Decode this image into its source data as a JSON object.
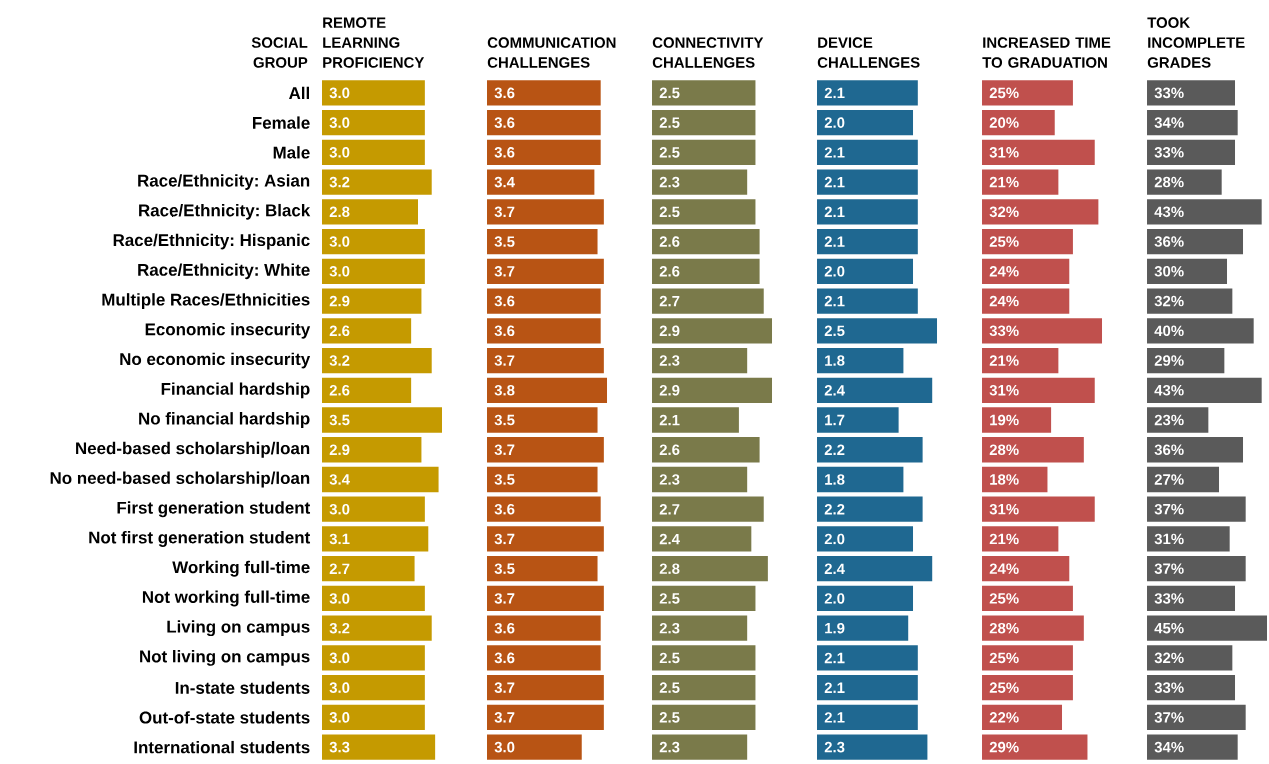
{
  "chart_data": [
    {
      "type": "bar",
      "orientation": "horizontal",
      "title": "REMOTE LEARNING PROFICIENCY",
      "ylabel": "SOCIAL GROUP",
      "tick_labels": "y",
      "color": "#c59a00",
      "xlim": [
        0,
        3.5
      ],
      "categories": [
        "All",
        "Female",
        "Male",
        "Race/Ethnicity: Asian",
        "Race/Ethnicity: Black",
        "Race/Ethnicity: Hispanic",
        "Race/Ethnicity: White",
        "Multiple Races/Ethnicities",
        "Economic insecurity",
        "No economic insecurity",
        "Financial hardship",
        "No financial hardship",
        "Need-based scholarship/loan",
        "No need-based scholarship/loan",
        "First generation student",
        "Not first generation student",
        "Working full-time",
        "Not working full-time",
        "Living on campus",
        "Not living on campus",
        "In-state students",
        "Out-of-state students",
        "International students"
      ],
      "values": [
        3.0,
        3.0,
        3.0,
        3.2,
        2.8,
        3.0,
        3.0,
        2.9,
        2.6,
        3.2,
        2.6,
        3.5,
        2.9,
        3.4,
        3.0,
        3.1,
        2.7,
        3.0,
        3.2,
        3.0,
        3.0,
        3.0,
        3.3
      ],
      "value_labels": [
        "3.0",
        "3.0",
        "3.0",
        "3.2",
        "2.8",
        "3.0",
        "3.0",
        "2.9",
        "2.6",
        "3.2",
        "2.6",
        "3.5",
        "2.9",
        "3.4",
        "3.0",
        "3.1",
        "2.7",
        "3.0",
        "3.2",
        "3.0",
        "3.0",
        "3.0",
        "3.3"
      ]
    },
    {
      "type": "bar",
      "orientation": "horizontal",
      "title": "COMMUNICATION CHALLENGES",
      "tick_labels": false,
      "color": "#b85414",
      "xlim": [
        0,
        3.8
      ],
      "values": [
        3.6,
        3.6,
        3.6,
        3.4,
        3.7,
        3.5,
        3.7,
        3.6,
        3.6,
        3.7,
        3.8,
        3.5,
        3.7,
        3.5,
        3.6,
        3.7,
        3.5,
        3.7,
        3.6,
        3.6,
        3.7,
        3.7,
        3.0
      ],
      "value_labels": [
        "3.6",
        "3.6",
        "3.6",
        "3.4",
        "3.7",
        "3.5",
        "3.7",
        "3.6",
        "3.6",
        "3.7",
        "3.8",
        "3.5",
        "3.7",
        "3.5",
        "3.6",
        "3.7",
        "3.5",
        "3.7",
        "3.6",
        "3.6",
        "3.7",
        "3.7",
        "3.0"
      ]
    },
    {
      "type": "bar",
      "orientation": "horizontal",
      "title": "CONNECTIVITY CHALLENGES",
      "tick_labels": false,
      "color": "#7a7a4a",
      "xlim": [
        0,
        2.9
      ],
      "values": [
        2.5,
        2.5,
        2.5,
        2.3,
        2.5,
        2.6,
        2.6,
        2.7,
        2.9,
        2.3,
        2.9,
        2.1,
        2.6,
        2.3,
        2.7,
        2.4,
        2.8,
        2.5,
        2.3,
        2.5,
        2.5,
        2.5,
        2.3
      ],
      "value_labels": [
        "2.5",
        "2.5",
        "2.5",
        "2.3",
        "2.5",
        "2.6",
        "2.6",
        "2.7",
        "2.9",
        "2.3",
        "2.9",
        "2.1",
        "2.6",
        "2.3",
        "2.7",
        "2.4",
        "2.8",
        "2.5",
        "2.3",
        "2.5",
        "2.5",
        "2.5",
        "2.3"
      ]
    },
    {
      "type": "bar",
      "orientation": "horizontal",
      "title": "DEVICE CHALLENGES",
      "tick_labels": false,
      "color": "#1f6891",
      "xlim": [
        0,
        2.5
      ],
      "values": [
        2.1,
        2.0,
        2.1,
        2.1,
        2.1,
        2.1,
        2.0,
        2.1,
        2.5,
        1.8,
        2.4,
        1.7,
        2.2,
        1.8,
        2.2,
        2.0,
        2.4,
        2.0,
        1.9,
        2.1,
        2.1,
        2.1,
        2.3
      ],
      "value_labels": [
        "2.1",
        "2.0",
        "2.1",
        "2.1",
        "2.1",
        "2.1",
        "2.0",
        "2.1",
        "2.5",
        "1.8",
        "2.4",
        "1.7",
        "2.2",
        "1.8",
        "2.2",
        "2.0",
        "2.4",
        "2.0",
        "1.9",
        "2.1",
        "2.1",
        "2.1",
        "2.3"
      ]
    },
    {
      "type": "bar",
      "orientation": "horizontal",
      "title": "INCREASED TIME TO GRADUATION",
      "tick_labels": false,
      "color": "#c0504d",
      "xlim": [
        0,
        33
      ],
      "values": [
        25,
        20,
        31,
        21,
        32,
        25,
        24,
        24,
        33,
        21,
        31,
        19,
        28,
        18,
        31,
        21,
        24,
        25,
        28,
        25,
        25,
        22,
        29
      ],
      "value_labels": [
        "25%",
        "20%",
        "31%",
        "21%",
        "32%",
        "25%",
        "24%",
        "24%",
        "33%",
        "21%",
        "31%",
        "19%",
        "28%",
        "18%",
        "31%",
        "21%",
        "24%",
        "25%",
        "28%",
        "25%",
        "25%",
        "22%",
        "29%"
      ]
    },
    {
      "type": "bar",
      "orientation": "horizontal",
      "title": "TOOK INCOMPLETE GRADES",
      "tick_labels": false,
      "color": "#5a5a5a",
      "xlim": [
        0,
        45
      ],
      "values": [
        33,
        34,
        33,
        28,
        43,
        36,
        30,
        32,
        40,
        29,
        43,
        23,
        36,
        27,
        37,
        31,
        37,
        33,
        45,
        32,
        33,
        37,
        34
      ],
      "value_labels": [
        "33%",
        "34%",
        "33%",
        "28%",
        "43%",
        "36%",
        "30%",
        "32%",
        "40%",
        "29%",
        "43%",
        "23%",
        "36%",
        "27%",
        "37%",
        "31%",
        "37%",
        "33%",
        "45%",
        "32%",
        "33%",
        "37%",
        "34%"
      ]
    }
  ]
}
